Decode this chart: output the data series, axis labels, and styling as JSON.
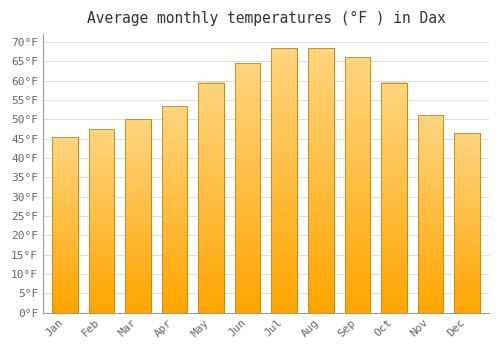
{
  "title": "Average monthly temperatures (°F ) in Dax",
  "months": [
    "Jan",
    "Feb",
    "Mar",
    "Apr",
    "May",
    "Jun",
    "Jul",
    "Aug",
    "Sep",
    "Oct",
    "Nov",
    "Dec"
  ],
  "values": [
    45.5,
    47.5,
    50.0,
    53.5,
    59.5,
    64.5,
    68.5,
    68.5,
    66.0,
    59.5,
    51.0,
    46.5
  ],
  "bar_color_bottom": "#FFA500",
  "bar_color_top": "#FFD580",
  "bar_edge_color": "#CC8800",
  "background_color": "#FFFFFF",
  "plot_bg_color": "#FFFFFF",
  "grid_color": "#DDDDDD",
  "text_color": "#666666",
  "title_color": "#333333",
  "ylim": [
    0,
    72
  ],
  "yticks": [
    0,
    5,
    10,
    15,
    20,
    25,
    30,
    35,
    40,
    45,
    50,
    55,
    60,
    65,
    70
  ],
  "title_fontsize": 10.5,
  "tick_fontsize": 8,
  "bar_width": 0.7
}
